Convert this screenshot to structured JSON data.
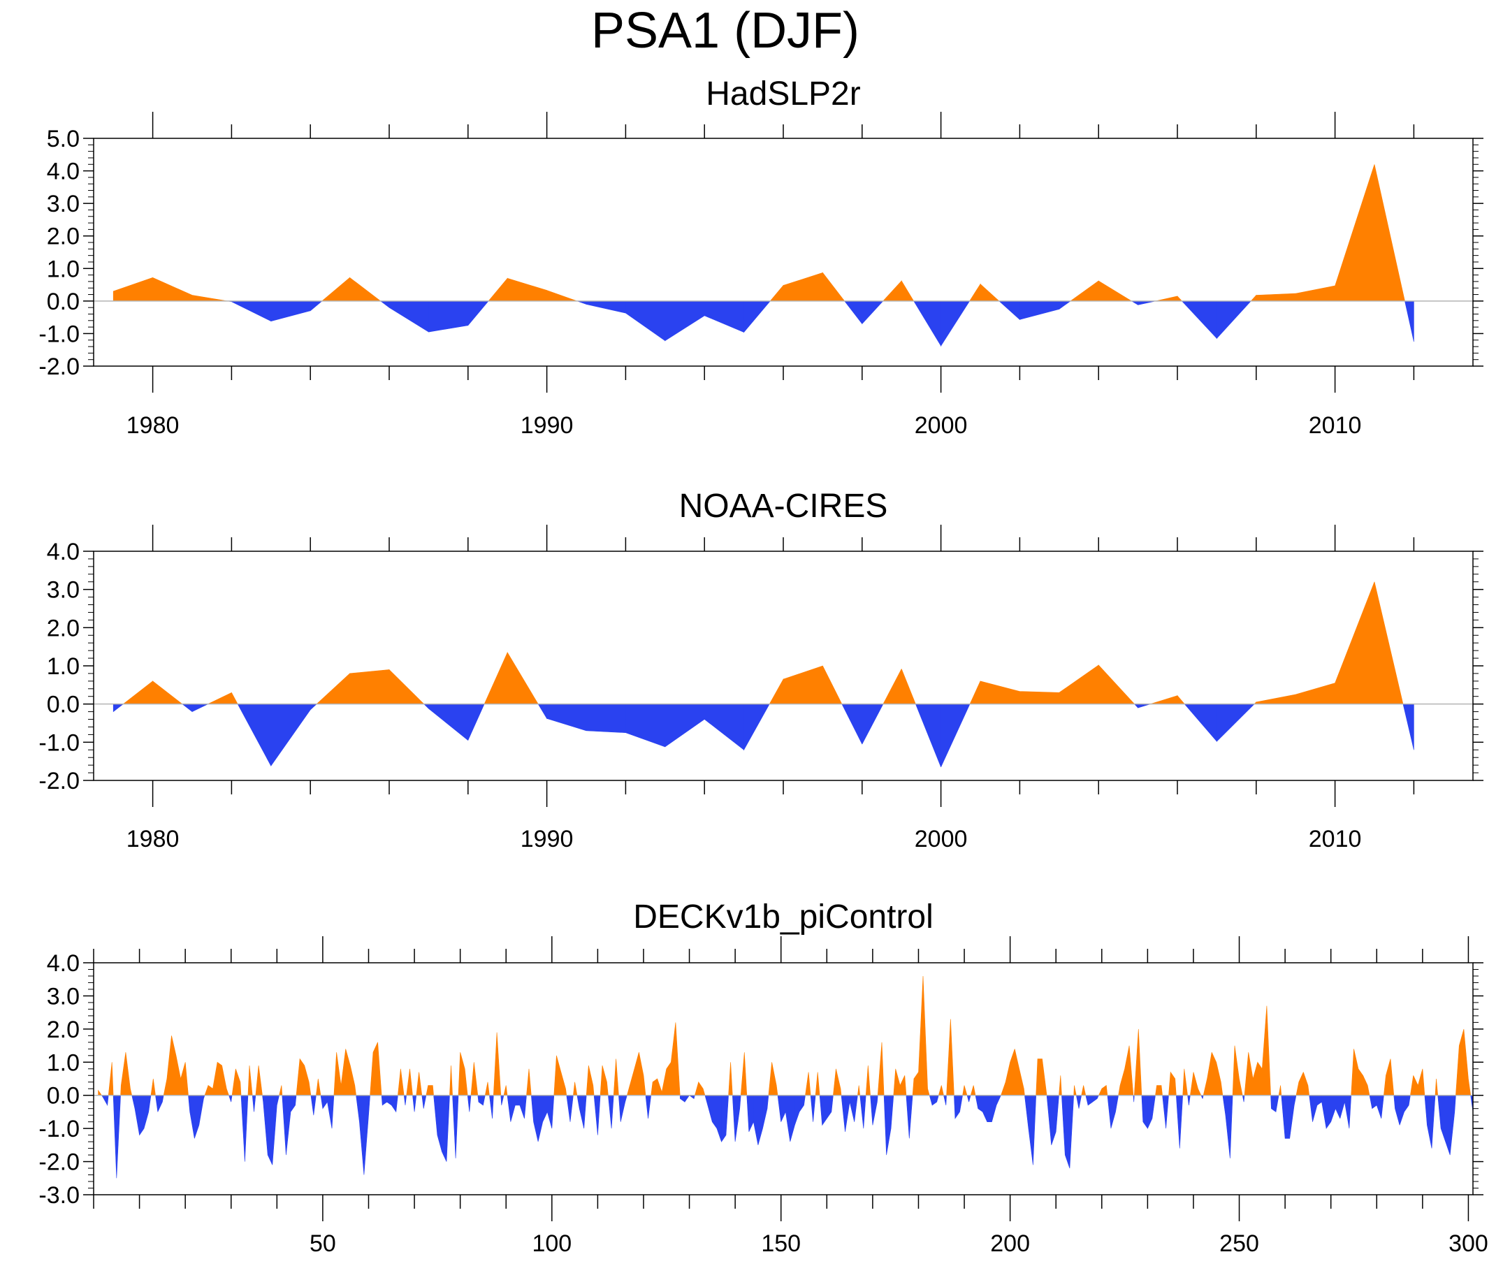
{
  "page": {
    "title": "PSA1 (DJF)"
  },
  "colors": {
    "positive": "#ff8000",
    "negative": "#2a42f0",
    "axis": "#000000",
    "zero_line": "#b4b4b4",
    "background": "#ffffff"
  },
  "chart_data": [
    {
      "type": "area",
      "title": "HadSLP2r",
      "xlim": [
        1978.5,
        2013.5
      ],
      "ylim": [
        -2.0,
        5.0
      ],
      "x_major_ticks": [
        1980,
        1990,
        2000,
        2010
      ],
      "x_minor_step": 2,
      "y_tick_labels": [
        "5.0",
        "4.0",
        "3.0",
        "2.0",
        "1.0",
        "0.0",
        "-1.0",
        "-2.0"
      ],
      "y_ticks": [
        5,
        4,
        3,
        2,
        1,
        0,
        -1,
        -2
      ],
      "baseline": 0,
      "x": [
        1979,
        1980,
        1981,
        1982,
        1983,
        1984,
        1985,
        1986,
        1987,
        1988,
        1989,
        1990,
        1991,
        1992,
        1993,
        1994,
        1995,
        1996,
        1997,
        1998,
        1999,
        2000,
        2001,
        2002,
        2003,
        2004,
        2005,
        2006,
        2007,
        2008,
        2009,
        2010,
        2011,
        2012
      ],
      "values": [
        0.3,
        0.72,
        0.18,
        -0.02,
        -0.62,
        -0.3,
        0.72,
        -0.2,
        -0.95,
        -0.75,
        0.7,
        0.33,
        -0.1,
        -0.37,
        -1.22,
        -0.45,
        -0.96,
        0.48,
        0.87,
        -0.7,
        0.62,
        -1.38,
        0.52,
        -0.57,
        -0.25,
        0.62,
        -0.12,
        0.15,
        -1.15,
        0.18,
        0.23,
        0.47,
        4.2,
        -1.25
      ]
    },
    {
      "type": "area",
      "title": "NOAA-CIRES",
      "xlim": [
        1978.5,
        2013.5
      ],
      "ylim": [
        -2.0,
        4.0
      ],
      "x_major_ticks": [
        1980,
        1990,
        2000,
        2010
      ],
      "x_minor_step": 2,
      "y_tick_labels": [
        "4.0",
        "3.0",
        "2.0",
        "1.0",
        "0.0",
        "-1.0",
        "-2.0"
      ],
      "y_ticks": [
        4,
        3,
        2,
        1,
        0,
        -1,
        -2
      ],
      "baseline": 0,
      "x": [
        1979,
        1980,
        1981,
        1982,
        1983,
        1984,
        1985,
        1986,
        1987,
        1988,
        1989,
        1990,
        1991,
        1992,
        1993,
        1994,
        1995,
        1996,
        1997,
        1998,
        1999,
        2000,
        2001,
        2002,
        2003,
        2004,
        2005,
        2006,
        2007,
        2008,
        2009,
        2010,
        2011,
        2012
      ],
      "values": [
        -0.2,
        0.6,
        -0.2,
        0.3,
        -1.62,
        -0.15,
        0.8,
        0.9,
        -0.12,
        -0.95,
        1.35,
        -0.38,
        -0.7,
        -0.75,
        -1.12,
        -0.4,
        -1.2,
        0.65,
        1.0,
        -1.05,
        0.92,
        -1.65,
        0.6,
        0.33,
        0.3,
        1.02,
        -0.1,
        0.22,
        -0.98,
        0.05,
        0.25,
        0.55,
        3.2,
        -1.2
      ]
    },
    {
      "type": "area",
      "title": "DECKv1b_piControl",
      "xlim": [
        0,
        301
      ],
      "ylim": [
        -3.0,
        4.0
      ],
      "x_major_ticks": [
        50,
        100,
        150,
        200,
        250,
        300
      ],
      "x_minor_step": 10,
      "y_tick_labels": [
        "4.0",
        "3.0",
        "2.0",
        "1.0",
        "0.0",
        "-1.0",
        "-2.0",
        "-3.0"
      ],
      "y_ticks": [
        4,
        3,
        2,
        1,
        0,
        -1,
        -2,
        -3
      ],
      "baseline": 0,
      "x_start": 1,
      "values": [
        0.15,
        -0.05,
        -0.3,
        1.0,
        -2.5,
        0.3,
        1.3,
        0.2,
        -0.4,
        -1.2,
        -1.0,
        -0.5,
        0.5,
        -0.5,
        -0.2,
        0.5,
        1.8,
        1.2,
        0.5,
        1.0,
        -0.5,
        -1.3,
        -0.9,
        -0.1,
        0.3,
        0.2,
        1.0,
        0.9,
        0.2,
        -0.2,
        0.8,
        0.4,
        -2.0,
        0.9,
        -0.5,
        0.9,
        -0.2,
        -1.8,
        -2.1,
        -0.3,
        0.3,
        -1.8,
        -0.5,
        -0.3,
        1.1,
        0.9,
        0.4,
        -0.6,
        0.5,
        -0.4,
        -0.2,
        -1.0,
        1.3,
        0.3,
        1.4,
        0.9,
        0.3,
        -0.8,
        -2.4,
        -0.6,
        1.3,
        1.6,
        -0.3,
        -0.2,
        -0.3,
        -0.5,
        0.8,
        -0.3,
        0.8,
        -0.5,
        0.7,
        -0.4,
        0.3,
        0.3,
        -1.2,
        -1.7,
        -2.0,
        0.9,
        -1.9,
        1.3,
        0.8,
        -0.5,
        1.0,
        -0.2,
        -0.3,
        0.4,
        -0.7,
        1.9,
        -0.3,
        0.3,
        -0.8,
        -0.3,
        -0.3,
        -0.7,
        0.8,
        -0.8,
        -1.4,
        -0.8,
        -0.5,
        -1.0,
        1.2,
        0.7,
        0.2,
        -0.8,
        0.4,
        -0.4,
        -1.0,
        0.9,
        0.3,
        -1.2,
        0.9,
        0.4,
        -1.0,
        1.1,
        -0.8,
        -0.2,
        0.3,
        0.8,
        1.3,
        0.6,
        -0.7,
        0.4,
        0.5,
        0.1,
        0.8,
        1.0,
        2.2,
        -0.1,
        -0.2,
        0.0,
        -0.1,
        0.4,
        0.2,
        -0.3,
        -0.8,
        -1.0,
        -1.4,
        -1.2,
        1.0,
        -1.4,
        -0.4,
        1.3,
        -1.1,
        -0.8,
        -1.5,
        -1.0,
        -0.4,
        1.0,
        0.3,
        -0.8,
        -0.5,
        -1.4,
        -0.9,
        -0.5,
        -0.3,
        0.7,
        -0.8,
        0.7,
        -0.9,
        -0.7,
        -0.5,
        0.8,
        0.2,
        -1.1,
        -0.2,
        -0.8,
        0.3,
        -1.0,
        0.9,
        -0.9,
        -0.2,
        1.6,
        -1.8,
        -1.0,
        0.8,
        0.3,
        0.6,
        -1.3,
        0.5,
        0.7,
        3.6,
        0.2,
        -0.3,
        -0.2,
        0.3,
        -0.3,
        2.3,
        -0.7,
        -0.5,
        0.3,
        -0.2,
        0.3,
        -0.4,
        -0.5,
        -0.8,
        -0.8,
        -0.3,
        0.0,
        0.4,
        1.0,
        1.4,
        0.8,
        0.2,
        -1.0,
        -2.1,
        1.1,
        1.1,
        0.0,
        -1.5,
        -1.1,
        0.6,
        -1.8,
        -2.2,
        0.3,
        -0.4,
        0.3,
        -0.3,
        -0.2,
        -0.1,
        0.2,
        0.3,
        -1.0,
        -0.5,
        0.3,
        0.8,
        1.5,
        -0.2,
        2.0,
        -0.8,
        -1.0,
        -0.7,
        0.3,
        0.3,
        -1.0,
        0.7,
        0.5,
        -1.6,
        0.8,
        -0.3,
        0.7,
        0.2,
        -0.1,
        0.5,
        1.3,
        1.0,
        0.4,
        -0.6,
        -1.9,
        1.5,
        0.5,
        -0.2,
        1.3,
        0.5,
        1.0,
        0.8,
        2.7,
        -0.4,
        -0.5,
        0.3,
        -1.3,
        -1.3,
        -0.3,
        0.4,
        0.7,
        0.3,
        -0.8,
        -0.3,
        -0.2,
        -1.0,
        -0.8,
        -0.4,
        -0.7,
        -0.2,
        -1.0,
        1.4,
        0.8,
        0.6,
        0.3,
        -0.4,
        -0.3,
        -0.7,
        0.6,
        1.1,
        -0.4,
        -0.9,
        -0.5,
        -0.3,
        0.6,
        0.3,
        0.8,
        -0.9,
        -1.6,
        0.5,
        -1.0,
        -1.4,
        -1.8,
        -0.5,
        1.5,
        2.0,
        0.5,
        -0.5
      ]
    }
  ]
}
